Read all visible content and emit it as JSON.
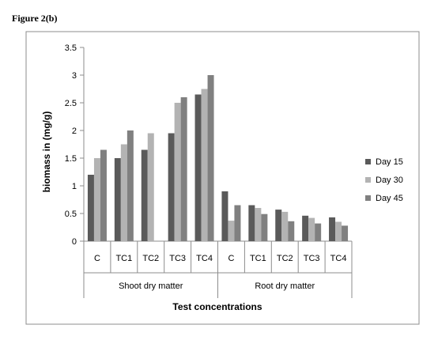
{
  "figure_label": "Figure 2(b)",
  "colors": {
    "Day 15": "#5a5a5a",
    "Day 30": "#b3b3b3",
    "Day 45": "#808080",
    "axis": "#8c8c8c",
    "frame": "#8c8c8c"
  },
  "chart_data": {
    "type": "bar",
    "title": "",
    "xlabel": "Test concentrations",
    "ylabel": "biomass in (mg/g)",
    "ylim": [
      0,
      3.5
    ],
    "yticks": [
      "0",
      "0.5",
      "1",
      "1.5",
      "2",
      "2.5",
      "3",
      "3.5"
    ],
    "grid": false,
    "legend_position": "right",
    "groups": [
      "Shoot dry matter",
      "Root dry matter"
    ],
    "categories": [
      "C",
      "TC1",
      "TC2",
      "TC3",
      "TC4",
      "C",
      "TC1",
      "TC2",
      "TC3",
      "TC4"
    ],
    "series": [
      {
        "name": "Day 15",
        "values": [
          1.2,
          1.5,
          1.65,
          1.95,
          2.65,
          0.9,
          0.65,
          0.57,
          0.46,
          0.43
        ]
      },
      {
        "name": "Day 30",
        "values": [
          1.5,
          1.75,
          1.95,
          2.5,
          2.75,
          0.37,
          0.6,
          0.53,
          0.42,
          0.35
        ]
      },
      {
        "name": "Day 45",
        "values": [
          1.65,
          2.0,
          0,
          2.6,
          3.0,
          0.65,
          0.49,
          0.36,
          0.32,
          0.28
        ]
      }
    ]
  }
}
